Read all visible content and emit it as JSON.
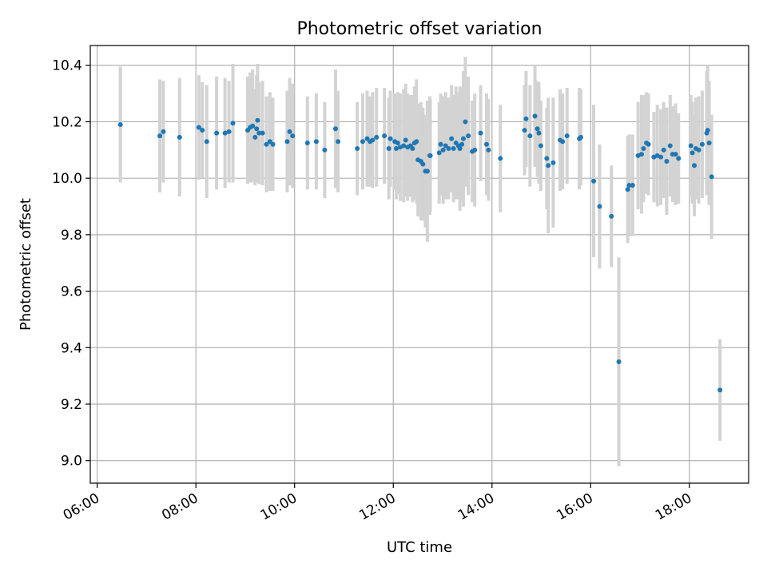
{
  "chart_data": {
    "type": "scatter",
    "title": "Photometric offset variation",
    "xlabel": "UTC time",
    "ylabel": "Photometric offset",
    "x_unit": "hour",
    "xlim": [
      5.86,
      19.2
    ],
    "ylim": [
      8.92,
      10.47
    ],
    "xticks": [
      {
        "value": 6,
        "label": "06:00"
      },
      {
        "value": 8,
        "label": "08:00"
      },
      {
        "value": 10,
        "label": "10:00"
      },
      {
        "value": 12,
        "label": "12:00"
      },
      {
        "value": 14,
        "label": "14:00"
      },
      {
        "value": 16,
        "label": "16:00"
      },
      {
        "value": 18,
        "label": "18:00"
      }
    ],
    "yticks": [
      {
        "value": 9.0,
        "label": "9.0"
      },
      {
        "value": 9.2,
        "label": "9.2"
      },
      {
        "value": 9.4,
        "label": "9.4"
      },
      {
        "value": 9.6,
        "label": "9.6"
      },
      {
        "value": 9.8,
        "label": "9.8"
      },
      {
        "value": 10.0,
        "label": "10.0"
      },
      {
        "value": 10.2,
        "label": "10.2"
      },
      {
        "value": 10.4,
        "label": "10.4"
      }
    ],
    "grid": true,
    "colors": {
      "point": "#1f77b4",
      "errorbar": "#d3d3d3"
    },
    "series": [
      {
        "x": [
          6.47,
          7.27,
          7.34,
          7.67,
          8.06,
          8.13,
          8.22,
          8.42,
          8.59,
          8.67,
          8.75,
          9.05,
          9.1,
          9.15,
          9.2,
          9.23,
          9.25,
          9.28,
          9.35,
          9.43,
          9.5,
          9.56,
          9.85,
          9.9,
          9.96,
          10.26,
          10.44,
          10.61,
          10.83,
          10.88,
          11.27,
          11.38,
          11.47,
          11.53,
          11.58,
          11.66,
          11.82,
          11.91,
          11.94,
          12.03,
          12.06,
          12.09,
          12.14,
          12.21,
          12.25,
          12.29,
          12.35,
          12.39,
          12.43,
          12.47,
          12.5,
          12.56,
          12.6,
          12.65,
          12.69,
          12.74,
          12.75,
          12.93,
          12.96,
          13.01,
          13.06,
          13.12,
          13.18,
          13.22,
          13.27,
          13.32,
          13.35,
          13.39,
          13.42,
          13.46,
          13.52,
          13.6,
          13.65,
          13.77,
          13.89,
          13.93,
          14.17,
          14.66,
          14.69,
          14.77,
          14.87,
          14.92,
          14.95,
          14.99,
          15.11,
          15.14,
          15.24,
          15.38,
          15.43,
          15.52,
          15.77,
          15.8,
          16.06,
          16.18,
          16.42,
          16.57,
          16.75,
          16.78,
          16.85,
          16.96,
          17.03,
          17.07,
          17.13,
          17.17,
          17.28,
          17.35,
          17.42,
          17.48,
          17.54,
          17.61,
          17.66,
          17.72,
          17.78,
          18.03,
          18.06,
          18.1,
          18.13,
          18.19,
          18.26,
          18.35,
          18.37,
          18.4,
          18.45,
          18.62
        ],
        "y": [
          10.19,
          10.15,
          10.165,
          10.145,
          10.18,
          10.17,
          10.13,
          10.16,
          10.16,
          10.165,
          10.195,
          10.17,
          10.18,
          10.185,
          10.145,
          10.175,
          10.205,
          10.16,
          10.16,
          10.12,
          10.13,
          10.12,
          10.13,
          10.165,
          10.15,
          10.125,
          10.13,
          10.1,
          10.175,
          10.13,
          10.105,
          10.13,
          10.14,
          10.13,
          10.135,
          10.145,
          10.15,
          10.105,
          10.14,
          10.13,
          10.105,
          10.125,
          10.11,
          10.115,
          10.135,
          10.11,
          10.115,
          10.105,
          10.125,
          10.13,
          10.065,
          10.06,
          10.05,
          10.025,
          10.025,
          10.08,
          10.08,
          10.09,
          10.12,
          10.1,
          10.115,
          10.105,
          10.14,
          10.105,
          10.125,
          10.115,
          10.105,
          10.12,
          10.14,
          10.2,
          10.15,
          10.095,
          10.1,
          10.16,
          10.12,
          10.1,
          10.07,
          10.17,
          10.21,
          10.15,
          10.22,
          10.175,
          10.16,
          10.115,
          10.07,
          10.045,
          10.055,
          10.135,
          10.13,
          10.15,
          10.14,
          10.145,
          9.99,
          9.9,
          9.865,
          9.35,
          9.96,
          9.975,
          9.975,
          10.08,
          10.085,
          10.105,
          10.125,
          10.12,
          10.075,
          10.08,
          10.075,
          10.1,
          10.06,
          10.115,
          10.085,
          10.085,
          10.07,
          10.115,
          10.09,
          10.045,
          10.105,
          10.1,
          10.12,
          10.16,
          10.17,
          10.125,
          10.005,
          9.25
        ],
        "err": [
          0.205,
          0.2,
          0.18,
          0.21,
          0.185,
          0.17,
          0.2,
          0.2,
          0.195,
          0.18,
          0.21,
          0.19,
          0.195,
          0.2,
          0.17,
          0.19,
          0.2,
          0.18,
          0.185,
          0.17,
          0.175,
          0.165,
          0.18,
          0.19,
          0.185,
          0.165,
          0.17,
          0.17,
          0.21,
          0.18,
          0.165,
          0.17,
          0.17,
          0.16,
          0.17,
          0.175,
          0.17,
          0.18,
          0.17,
          0.17,
          0.18,
          0.18,
          0.19,
          0.2,
          0.2,
          0.19,
          0.18,
          0.19,
          0.2,
          0.22,
          0.2,
          0.21,
          0.2,
          0.2,
          0.25,
          0.21,
          0.2,
          0.18,
          0.18,
          0.19,
          0.19,
          0.18,
          0.19,
          0.19,
          0.2,
          0.19,
          0.22,
          0.2,
          0.24,
          0.23,
          0.21,
          0.18,
          0.2,
          0.17,
          0.18,
          0.18,
          0.19,
          0.16,
          0.17,
          0.18,
          0.18,
          0.17,
          0.18,
          0.16,
          0.18,
          0.24,
          0.23,
          0.18,
          0.17,
          0.17,
          0.18,
          0.17,
          0.27,
          0.22,
          0.18,
          0.37,
          0.19,
          0.18,
          0.18,
          0.19,
          0.21,
          0.19,
          0.18,
          0.18,
          0.16,
          0.18,
          0.17,
          0.17,
          0.19,
          0.18,
          0.17,
          0.18,
          0.16,
          0.18,
          0.18,
          0.18,
          0.18,
          0.19,
          0.19,
          0.22,
          0.23,
          0.22,
          0.22,
          0.18
        ]
      }
    ]
  }
}
